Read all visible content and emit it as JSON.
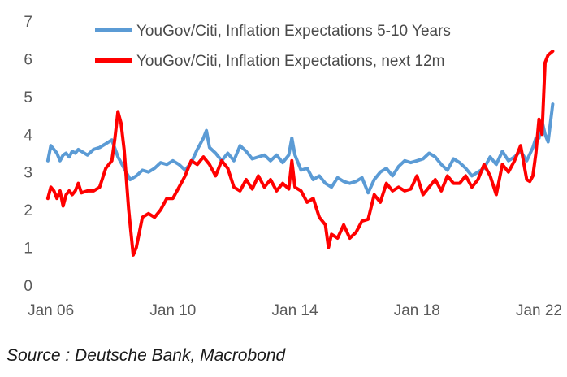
{
  "chart_data": {
    "type": "line",
    "ylim": [
      0,
      7
    ],
    "yticks": [
      0,
      1,
      2,
      3,
      4,
      5,
      6,
      7
    ],
    "xlim": [
      2005.85,
      2022.6
    ],
    "xticks": [
      {
        "value": 2006,
        "label": "Jan 06"
      },
      {
        "value": 2010,
        "label": "Jan 10"
      },
      {
        "value": 2014,
        "label": "Jan 14"
      },
      {
        "value": 2018,
        "label": "Jan 18"
      },
      {
        "value": 2022,
        "label": "Jan 22"
      }
    ],
    "legend": "top-right",
    "series": [
      {
        "name": "YouGov/Citi, Inflation Expectations 5-10 Years",
        "color": "#5b9bd5",
        "x": [
          2005.9,
          2006.0,
          2006.1,
          2006.2,
          2006.3,
          2006.4,
          2006.5,
          2006.6,
          2006.7,
          2006.8,
          2006.9,
          2007.0,
          2007.2,
          2007.4,
          2007.6,
          2007.8,
          2008.0,
          2008.2,
          2008.4,
          2008.6,
          2008.8,
          2009.0,
          2009.2,
          2009.4,
          2009.6,
          2009.8,
          2010.0,
          2010.2,
          2010.4,
          2010.6,
          2010.8,
          2011.0,
          2011.1,
          2011.2,
          2011.4,
          2011.6,
          2011.8,
          2012.0,
          2012.2,
          2012.4,
          2012.6,
          2012.8,
          2013.0,
          2013.2,
          2013.4,
          2013.6,
          2013.8,
          2013.9,
          2014.0,
          2014.2,
          2014.4,
          2014.6,
          2014.8,
          2015.0,
          2015.2,
          2015.4,
          2015.6,
          2015.8,
          2016.0,
          2016.2,
          2016.4,
          2016.6,
          2016.8,
          2017.0,
          2017.2,
          2017.4,
          2017.6,
          2017.8,
          2018.0,
          2018.2,
          2018.4,
          2018.6,
          2018.8,
          2019.0,
          2019.2,
          2019.4,
          2019.6,
          2019.8,
          2020.0,
          2020.2,
          2020.4,
          2020.6,
          2020.8,
          2021.0,
          2021.2,
          2021.4,
          2021.6,
          2021.8,
          2021.9,
          2022.0,
          2022.1,
          2022.2,
          2022.3,
          2022.45
        ],
        "values": [
          3.3,
          3.7,
          3.6,
          3.5,
          3.3,
          3.45,
          3.5,
          3.4,
          3.55,
          3.5,
          3.6,
          3.55,
          3.45,
          3.6,
          3.65,
          3.75,
          3.85,
          3.4,
          3.1,
          2.8,
          2.9,
          3.05,
          3.0,
          3.1,
          3.25,
          3.2,
          3.3,
          3.2,
          3.05,
          3.25,
          3.6,
          3.9,
          4.1,
          3.65,
          3.5,
          3.3,
          3.5,
          3.3,
          3.7,
          3.55,
          3.35,
          3.4,
          3.45,
          3.3,
          3.45,
          3.25,
          3.45,
          3.9,
          3.45,
          3.05,
          3.1,
          2.8,
          2.9,
          2.7,
          2.6,
          2.85,
          2.75,
          2.7,
          2.75,
          2.85,
          2.45,
          2.8,
          3.0,
          3.1,
          2.9,
          3.15,
          3.3,
          3.25,
          3.3,
          3.35,
          3.5,
          3.4,
          3.2,
          3.05,
          3.35,
          3.25,
          3.1,
          2.9,
          3.0,
          3.1,
          3.4,
          3.2,
          3.55,
          3.3,
          3.4,
          3.55,
          3.3,
          3.65,
          3.9,
          3.9,
          4.35,
          4.0,
          3.8,
          4.8
        ]
      },
      {
        "name": "YouGov/Citi, Inflation Expectations, next 12m",
        "color": "#ff0000",
        "x": [
          2005.9,
          2006.0,
          2006.1,
          2006.2,
          2006.3,
          2006.4,
          2006.5,
          2006.6,
          2006.7,
          2006.8,
          2006.9,
          2007.0,
          2007.2,
          2007.4,
          2007.6,
          2007.8,
          2008.0,
          2008.1,
          2008.2,
          2008.3,
          2008.4,
          2008.55,
          2008.7,
          2008.8,
          2009.0,
          2009.2,
          2009.4,
          2009.6,
          2009.8,
          2010.0,
          2010.2,
          2010.4,
          2010.6,
          2010.8,
          2011.0,
          2011.2,
          2011.4,
          2011.6,
          2011.8,
          2012.0,
          2012.2,
          2012.4,
          2012.6,
          2012.8,
          2013.0,
          2013.2,
          2013.4,
          2013.6,
          2013.8,
          2013.9,
          2014.0,
          2014.2,
          2014.4,
          2014.6,
          2014.8,
          2015.0,
          2015.1,
          2015.2,
          2015.4,
          2015.6,
          2015.8,
          2016.0,
          2016.2,
          2016.4,
          2016.6,
          2016.8,
          2017.0,
          2017.2,
          2017.4,
          2017.6,
          2017.8,
          2018.0,
          2018.2,
          2018.4,
          2018.6,
          2018.8,
          2019.0,
          2019.2,
          2019.4,
          2019.6,
          2019.8,
          2020.0,
          2020.2,
          2020.4,
          2020.6,
          2020.8,
          2021.0,
          2021.2,
          2021.4,
          2021.6,
          2021.7,
          2021.8,
          2021.9,
          2022.0,
          2022.1,
          2022.2,
          2022.3,
          2022.45
        ],
        "values": [
          2.3,
          2.6,
          2.5,
          2.3,
          2.5,
          2.1,
          2.4,
          2.5,
          2.4,
          2.5,
          2.7,
          2.45,
          2.5,
          2.5,
          2.6,
          3.1,
          3.3,
          3.9,
          4.6,
          4.3,
          3.6,
          2.0,
          0.8,
          1.0,
          1.8,
          1.9,
          1.8,
          2.0,
          2.3,
          2.3,
          2.6,
          2.9,
          3.3,
          3.2,
          3.4,
          3.2,
          2.9,
          3.3,
          3.1,
          2.6,
          2.5,
          2.8,
          2.55,
          2.9,
          2.6,
          2.8,
          2.5,
          2.7,
          2.55,
          3.3,
          2.6,
          2.5,
          2.2,
          2.3,
          1.8,
          1.6,
          1.0,
          1.35,
          1.25,
          1.6,
          1.25,
          1.4,
          1.7,
          1.75,
          2.4,
          2.2,
          2.7,
          2.5,
          2.6,
          2.5,
          2.55,
          2.9,
          2.4,
          2.6,
          2.8,
          2.5,
          2.9,
          2.7,
          2.7,
          2.9,
          2.6,
          2.8,
          3.2,
          2.9,
          2.4,
          3.2,
          3.0,
          3.3,
          3.7,
          2.8,
          2.75,
          2.9,
          3.5,
          4.4,
          4.0,
          5.9,
          6.1,
          6.2
        ]
      }
    ]
  },
  "source": "Source : Deutsche Bank, Macrobond"
}
